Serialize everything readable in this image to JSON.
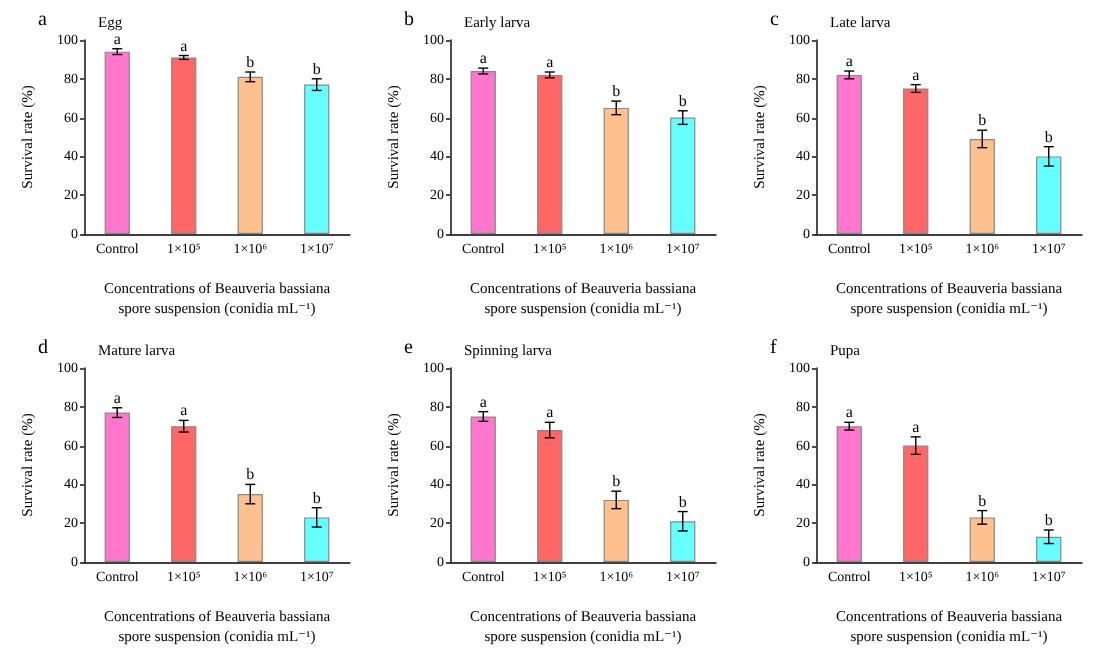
{
  "chart_data": [
    {
      "type": "bar",
      "title": "a",
      "subtitle": "Egg",
      "xlabel": "Concentrations of Beauveria bassiana spore suspension (conidia mL⁻¹)",
      "ylabel": "Survival rate (%)",
      "categories": [
        "Control",
        "1×10⁵",
        "1×10⁶",
        "1×10⁷"
      ],
      "values": [
        94,
        91,
        81,
        77
      ],
      "errors": [
        1.5,
        1,
        2.5,
        3
      ],
      "colors": [
        "#ff77cc",
        "#ff6666",
        "#ffc090",
        "#66ffff"
      ],
      "ylim": [
        0,
        100
      ],
      "yticks": [
        0,
        20,
        40,
        60,
        80,
        100
      ],
      "grid": false,
      "annotations": [
        {
          "text": "a",
          "x": "Control",
          "y": 95.5
        },
        {
          "text": "a",
          "x": "1×10⁵",
          "y": 92
        },
        {
          "text": "b",
          "x": "1×10⁶",
          "y": 83.5
        },
        {
          "text": "b",
          "x": "1×10⁷",
          "y": 80
        }
      ]
    },
    {
      "type": "bar",
      "title": "b",
      "subtitle": "Early larva",
      "xlabel": "Concentrations of Beauveria bassiana spore suspension (conidia mL⁻¹)",
      "ylabel": "Survival rate (%)",
      "categories": [
        "Control",
        "1×10⁵",
        "1×10⁶",
        "1×10⁷"
      ],
      "values": [
        84,
        82,
        65,
        60
      ],
      "errors": [
        1.5,
        1.5,
        3.5,
        3.5
      ],
      "colors": [
        "#ff77cc",
        "#ff6666",
        "#ffc090",
        "#66ffff"
      ],
      "ylim": [
        0,
        100
      ],
      "yticks": [
        0,
        20,
        40,
        60,
        80,
        100
      ],
      "grid": false,
      "annotations": [
        {
          "text": "a",
          "x": "Control",
          "y": 85.5
        },
        {
          "text": "a",
          "x": "1×10⁵",
          "y": 83.5
        },
        {
          "text": "b",
          "x": "1×10⁶",
          "y": 68.5
        },
        {
          "text": "b",
          "x": "1×10⁷",
          "y": 63.5
        }
      ]
    },
    {
      "type": "bar",
      "title": "c",
      "subtitle": "Late larva",
      "xlabel": "Concentrations of Beauveria bassiana spore suspension (conidia mL⁻¹)",
      "ylabel": "Survival rate (%)",
      "categories": [
        "Control",
        "1×10⁵",
        "1×10⁶",
        "1×10⁷"
      ],
      "values": [
        82,
        75,
        49,
        40
      ],
      "errors": [
        2,
        2,
        4.5,
        5
      ],
      "colors": [
        "#ff77cc",
        "#ff6666",
        "#ffc090",
        "#66ffff"
      ],
      "ylim": [
        0,
        100
      ],
      "yticks": [
        0,
        20,
        40,
        60,
        80,
        100
      ],
      "grid": false,
      "annotations": [
        {
          "text": "a",
          "x": "Control",
          "y": 84
        },
        {
          "text": "a",
          "x": "1×10⁵",
          "y": 77
        },
        {
          "text": "b",
          "x": "1×10⁶",
          "y": 53.5
        },
        {
          "text": "b",
          "x": "1×10⁷",
          "y": 45
        }
      ]
    },
    {
      "type": "bar",
      "title": "d",
      "subtitle": "Mature larva",
      "xlabel": "Concentrations of Beauveria bassiana spore suspension (conidia mL⁻¹)",
      "ylabel": "Survival rate (%)",
      "categories": [
        "Control",
        "1×10⁵",
        "1×10⁶",
        "1×10⁷"
      ],
      "values": [
        77,
        70,
        35,
        23
      ],
      "errors": [
        2.5,
        3,
        5,
        5
      ],
      "colors": [
        "#ff77cc",
        "#ff6666",
        "#ffc090",
        "#66ffff"
      ],
      "ylim": [
        0,
        100
      ],
      "yticks": [
        0,
        20,
        40,
        60,
        80,
        100
      ],
      "grid": false,
      "annotations": [
        {
          "text": "a",
          "x": "Control",
          "y": 79.5
        },
        {
          "text": "a",
          "x": "1×10⁵",
          "y": 73
        },
        {
          "text": "b",
          "x": "1×10⁶",
          "y": 40
        },
        {
          "text": "b",
          "x": "1×10⁷",
          "y": 28
        }
      ]
    },
    {
      "type": "bar",
      "title": "e",
      "subtitle": "Spinning larva",
      "xlabel": "Concentrations of Beauveria bassiana spore suspension (conidia mL⁻¹)",
      "ylabel": "Survival rate (%)",
      "categories": [
        "Control",
        "1×10⁵",
        "1×10⁶",
        "1×10⁷"
      ],
      "values": [
        75,
        68,
        32,
        21
      ],
      "errors": [
        2.5,
        4,
        4.5,
        5
      ],
      "colors": [
        "#ff77cc",
        "#ff6666",
        "#ffc090",
        "#66ffff"
      ],
      "ylim": [
        0,
        100
      ],
      "yticks": [
        0,
        20,
        40,
        60,
        80,
        100
      ],
      "grid": false,
      "annotations": [
        {
          "text": "a",
          "x": "Control",
          "y": 77.5
        },
        {
          "text": "a",
          "x": "1×10⁵",
          "y": 72
        },
        {
          "text": "b",
          "x": "1×10⁶",
          "y": 36.5
        },
        {
          "text": "b",
          "x": "1×10⁷",
          "y": 26
        }
      ]
    },
    {
      "type": "bar",
      "title": "f",
      "subtitle": "Pupa",
      "xlabel": "Concentrations of Beauveria bassiana spore suspension (conidia mL⁻¹)",
      "ylabel": "Survival rate (%)",
      "categories": [
        "Control",
        "1×10⁵",
        "1×10⁶",
        "1×10⁷"
      ],
      "values": [
        70,
        60,
        23,
        13
      ],
      "errors": [
        2,
        4.5,
        3.5,
        3.5
      ],
      "colors": [
        "#ff77cc",
        "#ff6666",
        "#ffc090",
        "#66ffff"
      ],
      "ylim": [
        0,
        100
      ],
      "yticks": [
        0,
        20,
        40,
        60,
        80,
        100
      ],
      "grid": false,
      "annotations": [
        {
          "text": "a",
          "x": "Control",
          "y": 72
        },
        {
          "text": "a",
          "x": "1×10⁵",
          "y": 64.5
        },
        {
          "text": "b",
          "x": "1×10⁶",
          "y": 26.5
        },
        {
          "text": "b",
          "x": "1×10⁷",
          "y": 16.5
        }
      ]
    }
  ]
}
